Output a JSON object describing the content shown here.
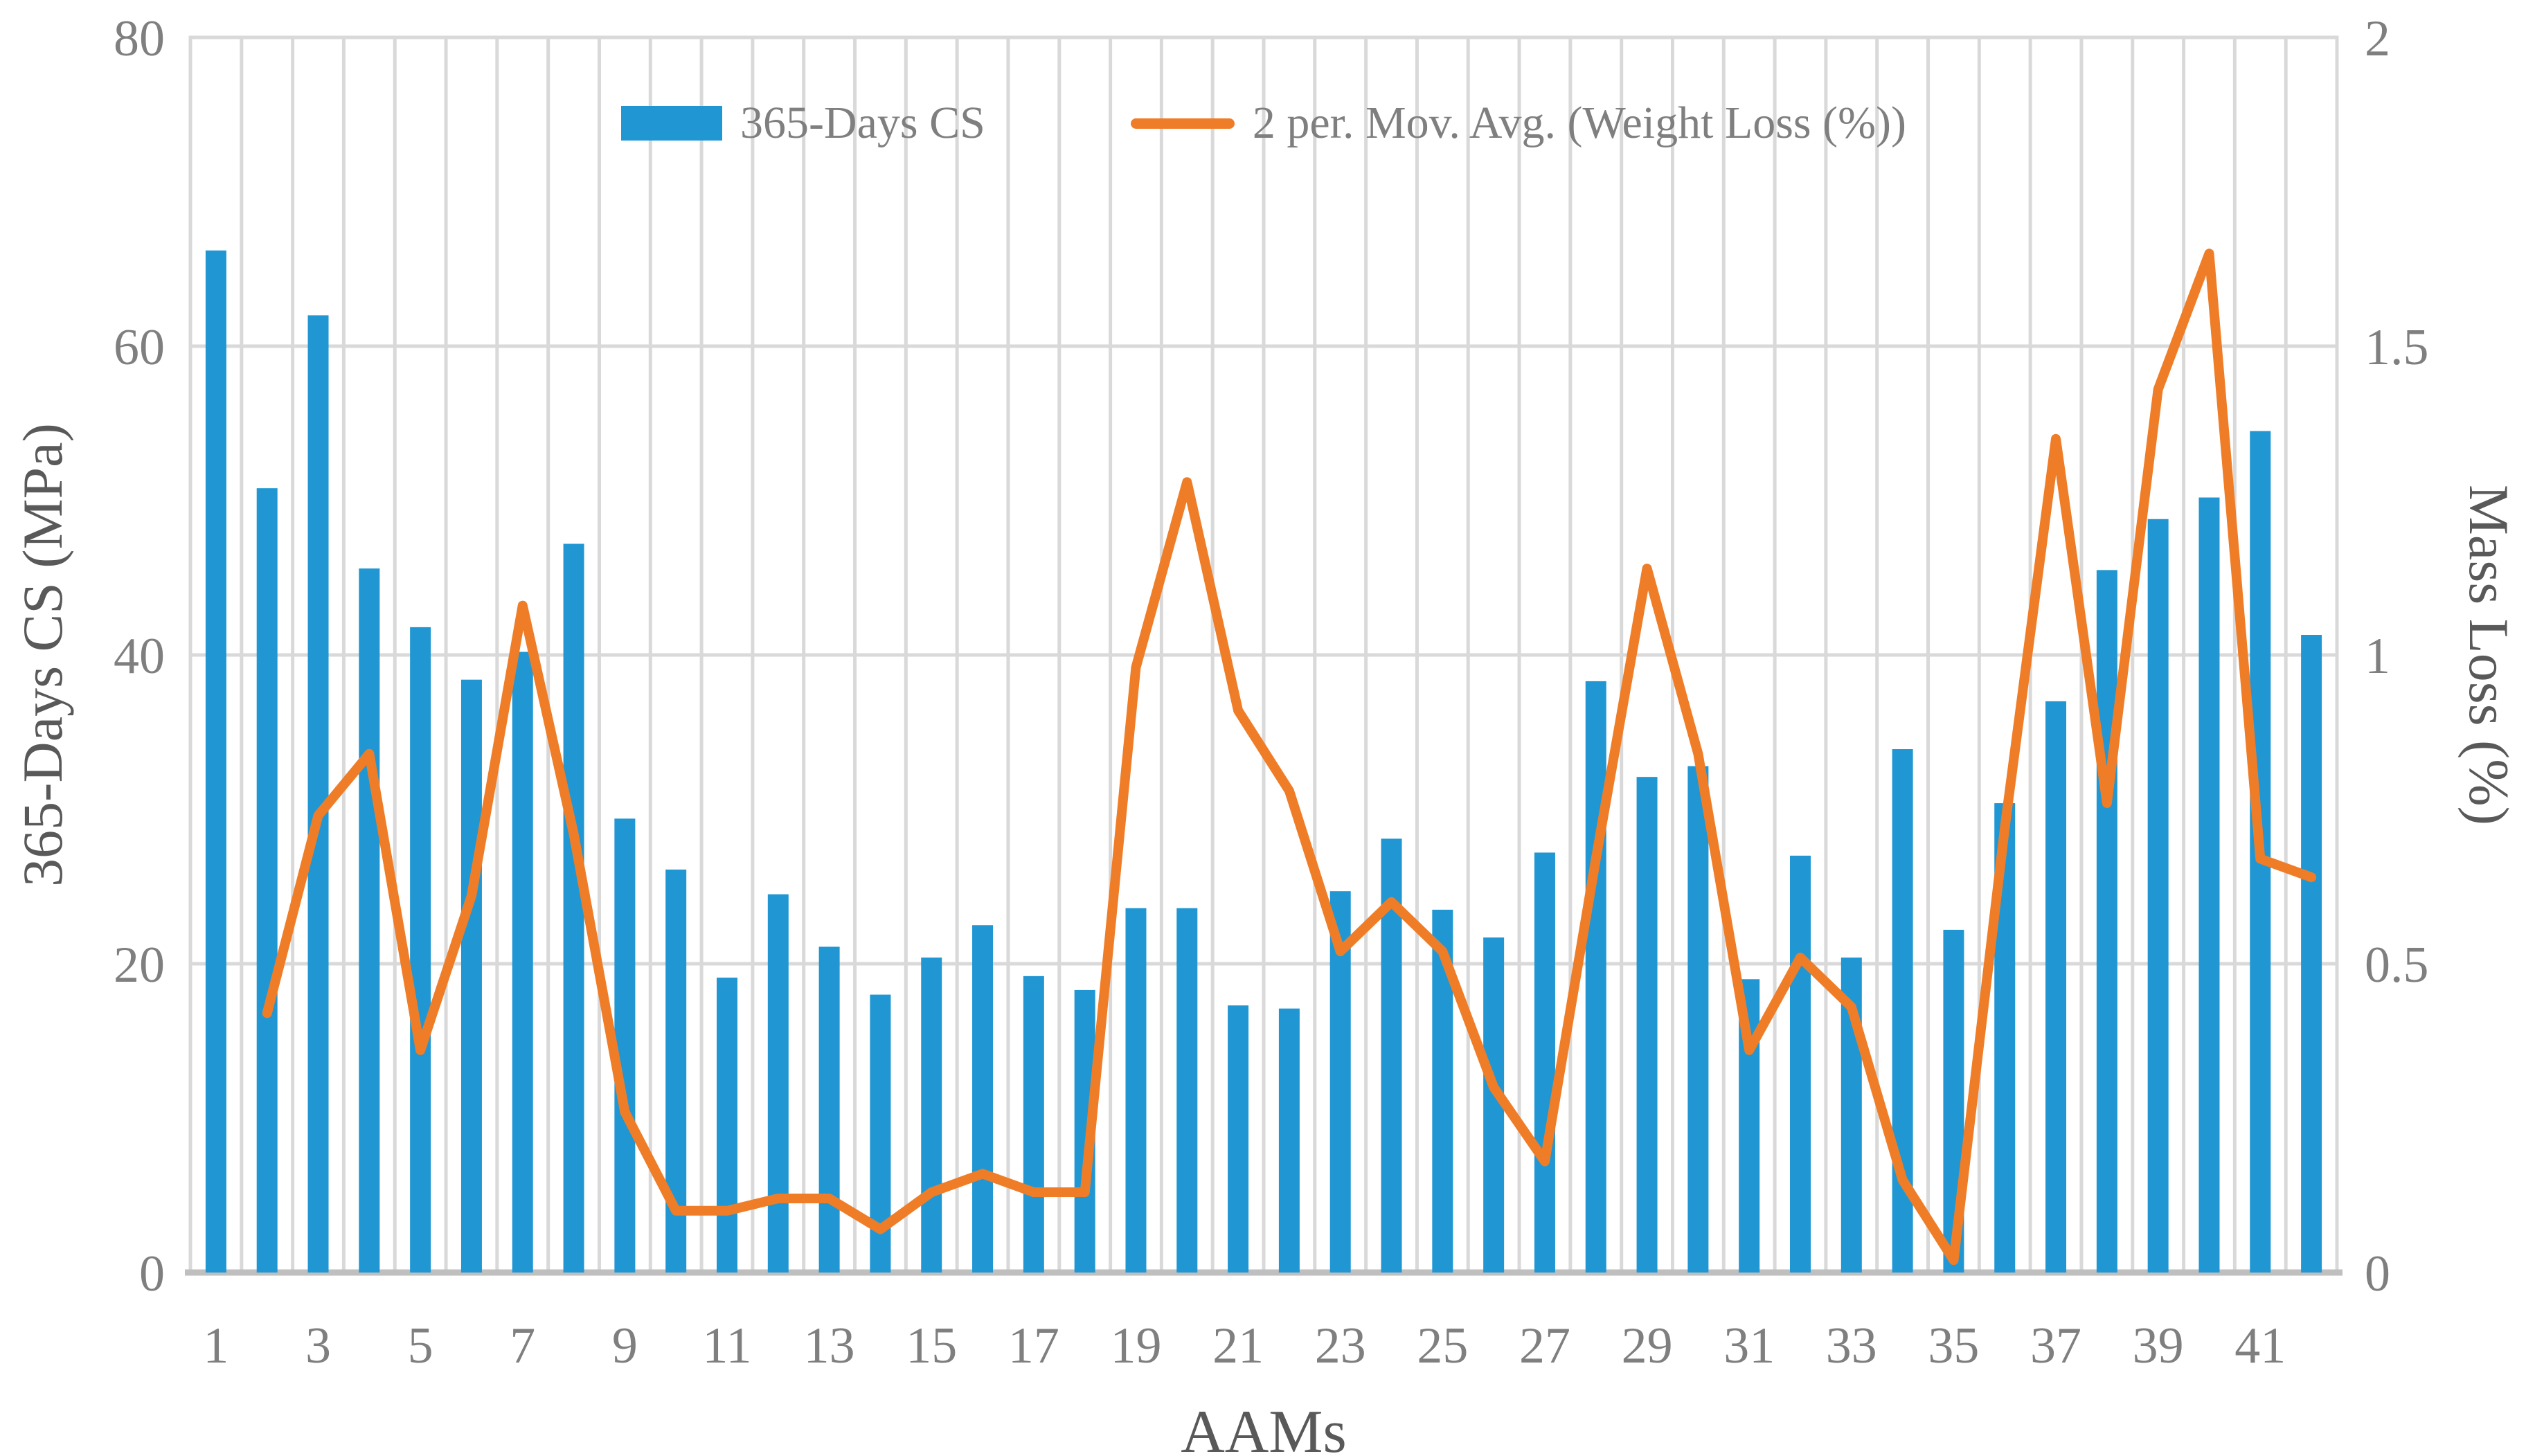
{
  "figure": {
    "background": "#ffffff",
    "grid_color": "#d9d9d9",
    "axis_line_color": "#bfbfbf",
    "tick_color": "#7f7f7f",
    "title_color": "#595959"
  },
  "legend": {
    "items": [
      {
        "label": "365-Days CS",
        "swatch": "bar",
        "color": "#2097d3"
      },
      {
        "label": "2 per. Mov. Avg. (Weight Loss (%))",
        "swatch": "line",
        "color": "#ef7d28"
      }
    ]
  },
  "chart_data": {
    "type": "bar+line",
    "title": "",
    "x": [
      1,
      2,
      3,
      4,
      5,
      6,
      7,
      8,
      9,
      10,
      11,
      12,
      13,
      14,
      15,
      16,
      17,
      18,
      19,
      20,
      21,
      22,
      23,
      24,
      25,
      26,
      27,
      28,
      29,
      30,
      31,
      32,
      33,
      34,
      35,
      36,
      37,
      38,
      39,
      40,
      41,
      42
    ],
    "series": [
      {
        "name": "365-Days CS",
        "type": "bar",
        "axis": "left",
        "color": "#2097d3",
        "values": [
          66.2,
          50.8,
          62.0,
          45.6,
          41.8,
          38.4,
          40.2,
          47.2,
          29.4,
          26.1,
          19.1,
          24.5,
          21.1,
          18.0,
          20.4,
          22.5,
          19.2,
          18.3,
          23.6,
          23.6,
          17.3,
          17.1,
          24.7,
          28.1,
          23.5,
          21.7,
          27.2,
          38.3,
          32.1,
          32.8,
          19.0,
          27.0,
          20.4,
          33.9,
          22.2,
          30.4,
          37.0,
          45.5,
          48.8,
          50.2,
          54.5,
          41.3
        ]
      },
      {
        "name": "2 per. Mov. Avg. (Weight Loss (%))",
        "type": "line",
        "axis": "right",
        "color": "#ef7d28",
        "values": [
          null,
          0.42,
          0.74,
          0.84,
          0.36,
          0.61,
          1.08,
          0.71,
          0.26,
          0.1,
          0.1,
          0.12,
          0.12,
          0.07,
          0.13,
          0.16,
          0.13,
          0.13,
          0.98,
          1.28,
          0.91,
          0.78,
          0.52,
          0.6,
          0.52,
          0.3,
          0.18,
          0.67,
          1.14,
          0.84,
          0.36,
          0.51,
          0.43,
          0.15,
          0.02,
          0.72,
          1.35,
          0.76,
          1.43,
          1.65,
          0.67,
          0.64
        ]
      }
    ],
    "x_axis": {
      "title": "AAMs",
      "tick_values": [
        1,
        3,
        5,
        7,
        9,
        11,
        13,
        15,
        17,
        19,
        21,
        23,
        25,
        27,
        29,
        31,
        33,
        35,
        37,
        39,
        41
      ],
      "tick_labels": [
        "1",
        "3",
        "5",
        "7",
        "9",
        "11",
        "13",
        "15",
        "17",
        "19",
        "21",
        "23",
        "25",
        "27",
        "29",
        "31",
        "33",
        "35",
        "37",
        "39",
        "41"
      ]
    },
    "y_left": {
      "title": "365-Days CS (MPa)",
      "min": 0,
      "max": 80,
      "ticks": [
        0,
        20,
        40,
        60,
        80
      ],
      "tick_labels": [
        "0",
        "20",
        "40",
        "60",
        "80"
      ]
    },
    "y_right": {
      "title": "Mass  Loss (%)",
      "min": 0,
      "max": 2,
      "ticks": [
        0,
        0.5,
        1,
        1.5,
        2
      ],
      "tick_labels": [
        "0",
        "0.5",
        "1",
        "1.5",
        "2"
      ]
    },
    "grid": {
      "vertical": true,
      "horizontal": true
    },
    "legend_position": "top-center"
  }
}
